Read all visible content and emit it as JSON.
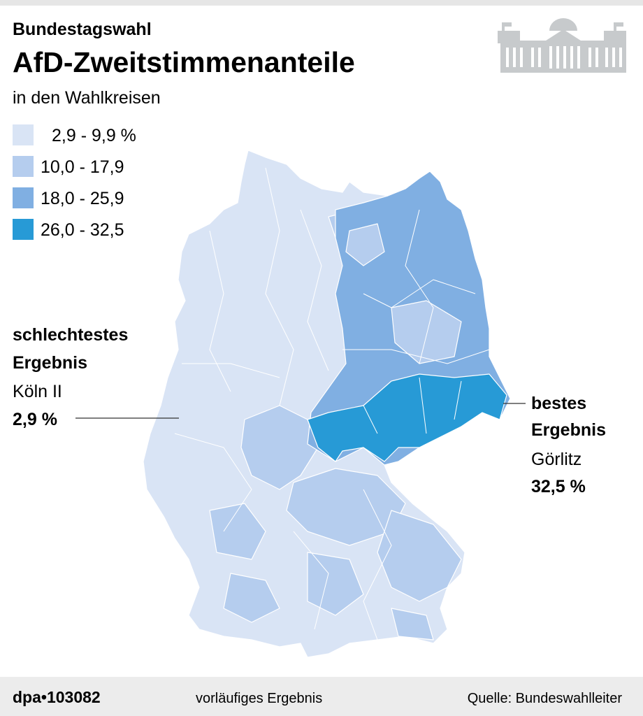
{
  "header": {
    "kicker": "Bundestagswahl",
    "title": "AfD-Zweitstimmenanteile",
    "subtitle": "in den Wahlkreisen"
  },
  "legend": {
    "items": [
      {
        "label": "2,9 - 9,9 %",
        "color": "#d9e4f5"
      },
      {
        "label": "10,0 - 17,9",
        "color": "#b5cdee"
      },
      {
        "label": "18,0 - 25,9",
        "color": "#80afe2"
      },
      {
        "label": "26,0 - 32,5",
        "color": "#279ad6"
      }
    ]
  },
  "annotations": {
    "worst": {
      "heading": [
        "schlechtestes",
        "Ergebnis"
      ],
      "place": "Köln II",
      "value": "2,9 %"
    },
    "best": {
      "heading": [
        "bestes",
        "Ergebnis"
      ],
      "place": "Görlitz",
      "value": "32,5 %"
    }
  },
  "footer": {
    "agency": "dpa•103082",
    "note": "vorläufiges Ergebnis",
    "source": "Quelle: Bundeswahlleiter"
  }
}
